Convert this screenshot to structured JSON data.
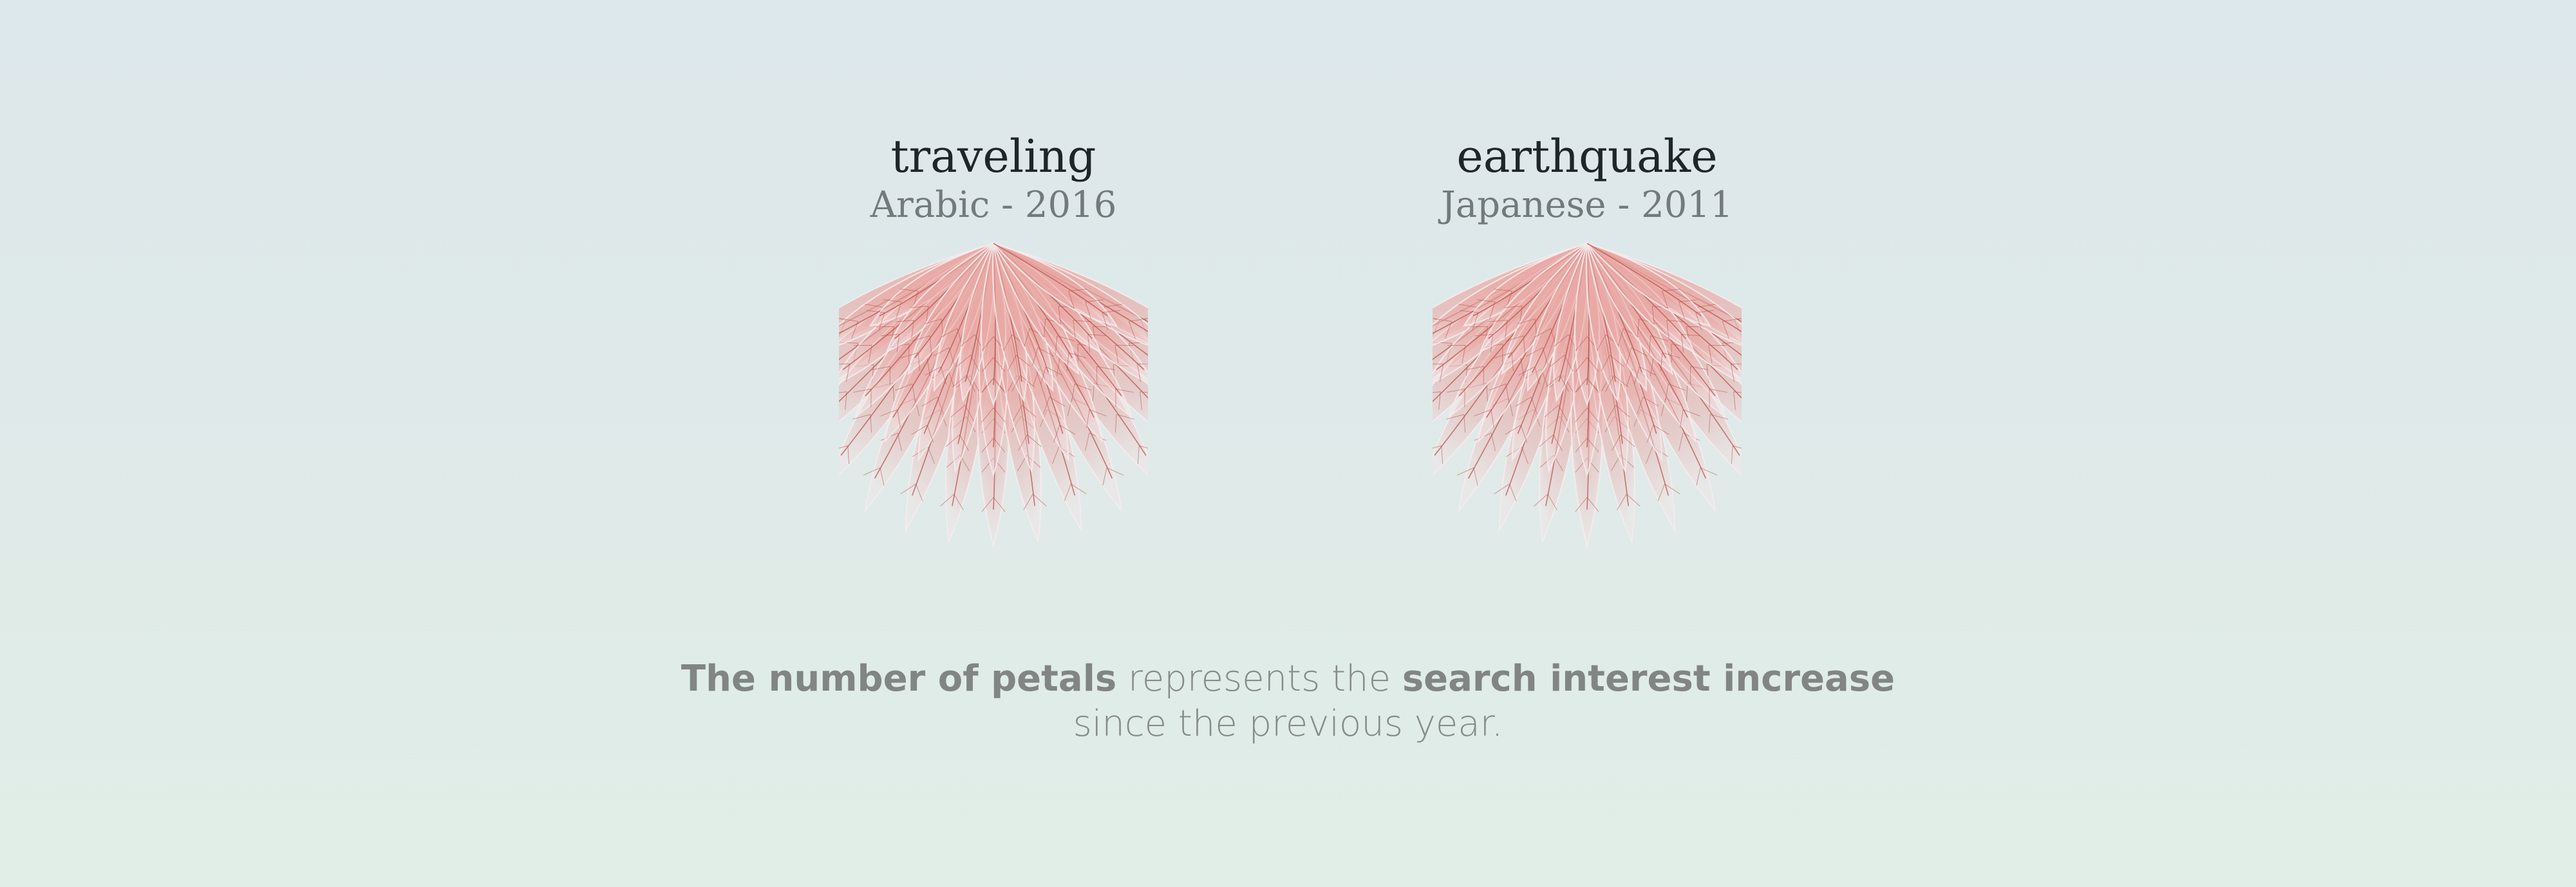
{
  "flowers": [
    {
      "word": "traveling",
      "language_year": "Arabic - 2016",
      "colors": {
        "petal": "#e9a9a5",
        "vein": "#b8504b",
        "light": "#f3e6e7"
      }
    },
    {
      "word": "earthquake",
      "language_year": "Japanese - 2011",
      "colors": {
        "petal": "#e9a9a5",
        "vein": "#b8504b",
        "light": "#f3e6e7"
      }
    }
  ],
  "caption": {
    "part1": "The number of petals",
    "part2": " represents the ",
    "part3": "search interest increase",
    "line2": "since the previous year."
  },
  "colors": {
    "background_top": "#dde8ec",
    "background_bottom": "#e1eee7",
    "title_text": "#1f2628",
    "subtitle_text": "#727a7b",
    "caption_text": "#868b8b"
  }
}
